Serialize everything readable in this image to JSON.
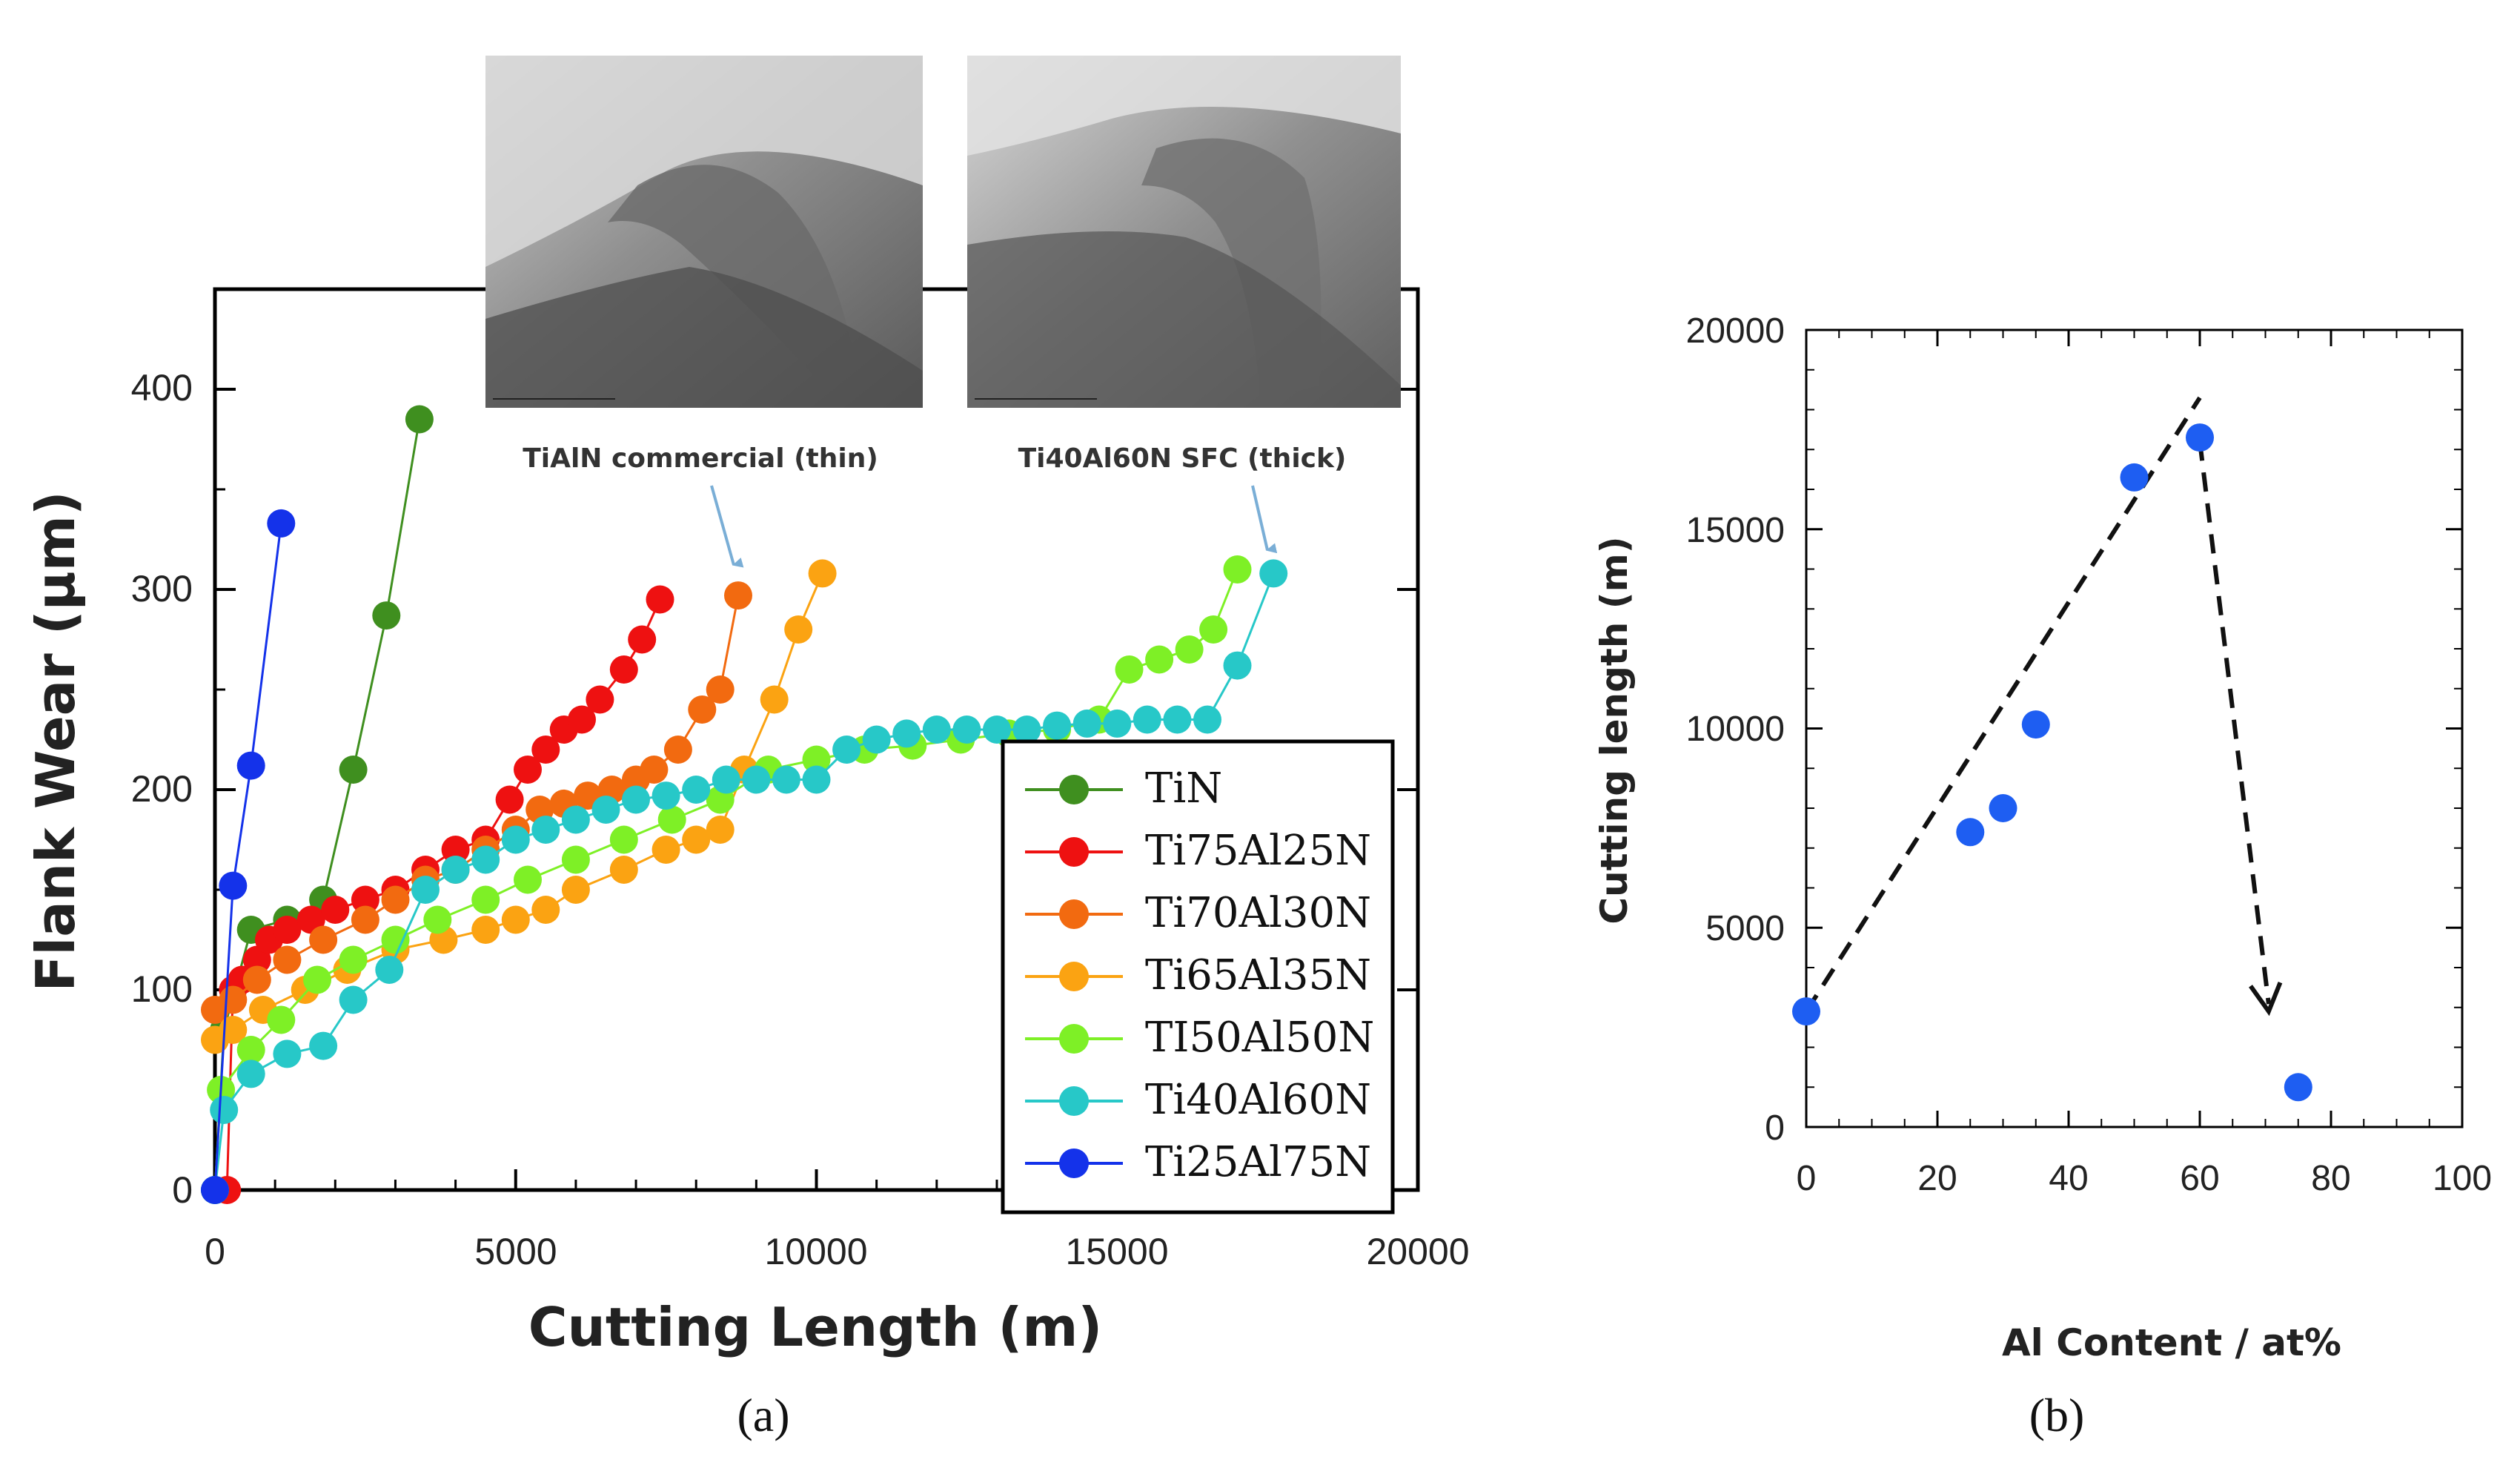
{
  "chart_data": [
    {
      "type": "line",
      "panel": "(a)",
      "xlabel": "Cutting Length (m)",
      "ylabel": "Flank Wear (μm)",
      "xlim": [
        0,
        20000
      ],
      "ylim": [
        0,
        450
      ],
      "xticks": [
        0,
        5000,
        10000,
        15000,
        20000
      ],
      "yticks": [
        0,
        100,
        200,
        300,
        400
      ],
      "legend_position": "bottom-right",
      "series": [
        {
          "name": "TiN",
          "color": "#3f8f1f",
          "x": [
            0,
            150,
            600,
            1200,
            1800,
            2300,
            2850,
            3400
          ],
          "y": [
            0,
            80,
            130,
            135,
            145,
            210,
            287,
            385
          ]
        },
        {
          "name": "Ti75Al25N",
          "color": "#ee1111",
          "x": [
            200,
            300,
            450,
            700,
            900,
            1200,
            1600,
            2000,
            2500,
            3000,
            3500,
            4000,
            4500,
            4900,
            5200,
            5500,
            5800,
            6100,
            6400,
            6800,
            7100,
            7400
          ],
          "y": [
            0,
            100,
            105,
            115,
            125,
            130,
            135,
            140,
            145,
            150,
            160,
            170,
            175,
            195,
            210,
            220,
            230,
            235,
            245,
            260,
            275,
            295
          ]
        },
        {
          "name": "Ti70Al30N",
          "color": "#f26a10",
          "x": [
            0,
            300,
            700,
            1200,
            1800,
            2500,
            3000,
            3500,
            4000,
            4500,
            5000,
            5400,
            5800,
            6200,
            6600,
            7000,
            7300,
            7700,
            8100,
            8400,
            8700
          ],
          "y": [
            90,
            95,
            105,
            115,
            125,
            135,
            145,
            155,
            160,
            170,
            180,
            190,
            193,
            197,
            200,
            205,
            210,
            220,
            240,
            250,
            297
          ]
        },
        {
          "name": "Ti65Al35N",
          "color": "#fba312",
          "x": [
            0,
            300,
            800,
            1500,
            2200,
            3000,
            3800,
            4500,
            5000,
            5500,
            6000,
            6800,
            7500,
            8000,
            8400,
            8800,
            9300,
            9700,
            10100
          ],
          "y": [
            75,
            80,
            90,
            100,
            110,
            120,
            125,
            130,
            135,
            140,
            150,
            160,
            170,
            175,
            180,
            210,
            245,
            280,
            308
          ]
        },
        {
          "name": "TI50Al50N",
          "color": "#7ef026",
          "x": [
            0,
            100,
            600,
            1100,
            1700,
            2300,
            3000,
            3700,
            4500,
            5200,
            6000,
            6800,
            7600,
            8400,
            9200,
            10000,
            10800,
            11600,
            12400,
            13200,
            14000,
            14700,
            15200,
            15700,
            16200,
            16600,
            17000
          ],
          "y": [
            0,
            50,
            70,
            85,
            105,
            115,
            125,
            135,
            145,
            155,
            165,
            175,
            185,
            195,
            210,
            215,
            220,
            222,
            225,
            228,
            230,
            235,
            260,
            265,
            270,
            280,
            310
          ]
        },
        {
          "name": "Ti40Al60N",
          "color": "#27c8c8",
          "x": [
            0,
            150,
            600,
            1200,
            1800,
            2300,
            2900,
            3500,
            4000,
            4500,
            5000,
            5500,
            6000,
            6500,
            7000,
            7500,
            8000,
            8500,
            9000,
            9500,
            10000,
            10500,
            11000,
            11500,
            12000,
            12500,
            13000,
            13500,
            14000,
            14500,
            15000,
            15500,
            16000,
            16500,
            17000,
            17600
          ],
          "y": [
            0,
            40,
            58,
            68,
            72,
            95,
            110,
            150,
            160,
            165,
            175,
            180,
            185,
            190,
            195,
            197,
            200,
            205,
            205,
            205,
            205,
            220,
            225,
            228,
            230,
            230,
            230,
            230,
            232,
            233,
            233,
            235,
            235,
            235,
            262,
            308
          ]
        },
        {
          "name": "Ti25Al75N",
          "color": "#1432ea",
          "x": [
            0,
            300,
            600,
            1100
          ],
          "y": [
            0,
            152,
            212,
            333
          ]
        }
      ],
      "annotations": [
        "TiAlN commercial (thin)",
        "Ti40Al60N SFC (thick)"
      ],
      "inset_images": [
        "SEM micrograph of TiAlN commercial (thin) tool flank",
        "SEM micrograph of Ti40Al60N SFC (thick) tool flank"
      ]
    },
    {
      "type": "scatter",
      "panel": "(b)",
      "xlabel": "Al Content / at%",
      "ylabel": "Cutting length (m)",
      "xlim": [
        0,
        100
      ],
      "ylim": [
        0,
        20000
      ],
      "xticks": [
        0,
        20,
        40,
        60,
        80,
        100
      ],
      "yticks": [
        0,
        5000,
        10000,
        15000,
        20000
      ],
      "x": [
        0,
        25,
        30,
        35,
        50,
        60,
        75
      ],
      "y": [
        2900,
        7400,
        8000,
        10100,
        16300,
        17300,
        1000
      ],
      "point_color": "#1e5ef2",
      "trend_line": {
        "x": [
          0,
          60
        ],
        "y": [
          2900,
          18300
        ]
      },
      "drop_arrow": {
        "x": [
          60,
          70.5
        ],
        "y": [
          17200,
          2900
        ]
      }
    }
  ],
  "captions": {
    "a": "(a)",
    "b": "(b)"
  }
}
